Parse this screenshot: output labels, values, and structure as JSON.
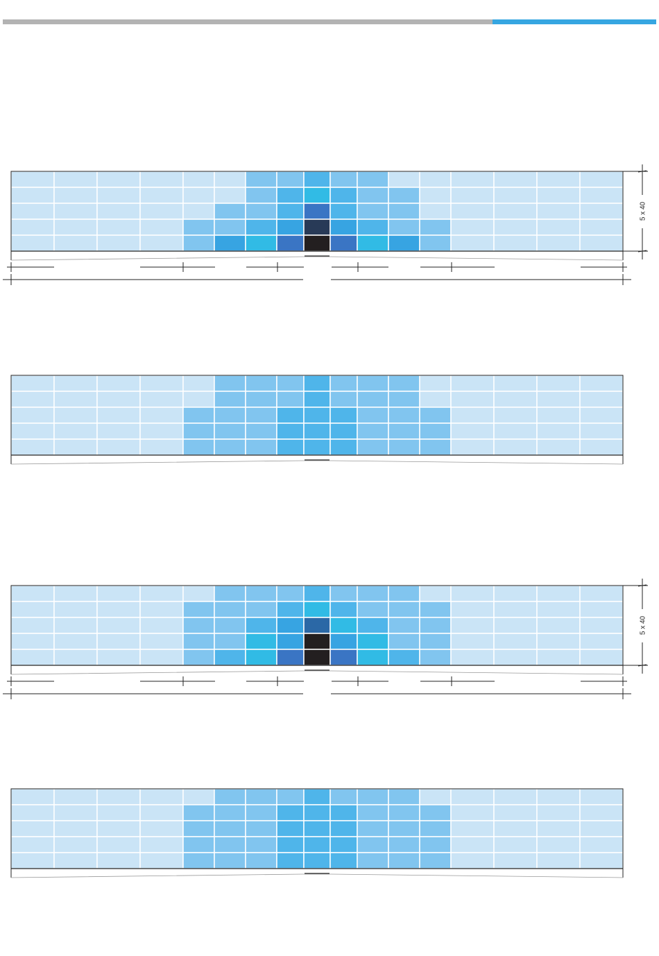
{
  "header_bar": {
    "accent_color": "#36a6e1",
    "neutral_color": "#b3b3b3"
  },
  "palette": {
    "0": "#cae4f6",
    "1": "#81c5ef",
    "2": "#4fb5ea",
    "3": "#37a4e2",
    "4": "#31bbe5",
    "5": "#3a75c4",
    "6": "#2b68a6",
    "7": "#283a57",
    "8": "#231f20"
  },
  "column_widths": [
    62,
    62,
    62,
    62,
    45,
    45,
    45,
    39,
    38,
    39,
    45,
    45,
    45,
    62,
    62,
    62,
    62
  ],
  "panels": [
    {
      "name": "panel-1",
      "dimension_label": "5 x 40",
      "has_dimensions": true,
      "grid": [
        [
          0,
          0,
          0,
          0,
          0,
          0,
          1,
          1,
          2,
          1,
          1,
          0,
          0,
          0,
          0,
          0,
          0
        ],
        [
          0,
          0,
          0,
          0,
          0,
          0,
          1,
          2,
          4,
          2,
          1,
          1,
          0,
          0,
          0,
          0,
          0
        ],
        [
          0,
          0,
          0,
          0,
          0,
          1,
          1,
          2,
          5,
          2,
          1,
          1,
          0,
          0,
          0,
          0,
          0
        ],
        [
          0,
          0,
          0,
          0,
          1,
          1,
          2,
          3,
          7,
          3,
          2,
          1,
          1,
          0,
          0,
          0,
          0
        ],
        [
          0,
          0,
          0,
          0,
          1,
          3,
          4,
          5,
          8,
          5,
          4,
          3,
          1,
          0,
          0,
          0,
          0
        ]
      ]
    },
    {
      "name": "panel-2",
      "dimension_label": "",
      "has_dimensions": false,
      "grid": [
        [
          0,
          0,
          0,
          0,
          0,
          1,
          1,
          1,
          2,
          1,
          1,
          1,
          0,
          0,
          0,
          0,
          0
        ],
        [
          0,
          0,
          0,
          0,
          0,
          1,
          1,
          1,
          2,
          1,
          1,
          1,
          0,
          0,
          0,
          0,
          0
        ],
        [
          0,
          0,
          0,
          0,
          1,
          1,
          1,
          2,
          2,
          2,
          1,
          1,
          1,
          0,
          0,
          0,
          0
        ],
        [
          0,
          0,
          0,
          0,
          1,
          1,
          1,
          2,
          2,
          2,
          1,
          1,
          1,
          0,
          0,
          0,
          0
        ],
        [
          0,
          0,
          0,
          0,
          1,
          1,
          1,
          2,
          2,
          2,
          1,
          1,
          1,
          0,
          0,
          0,
          0
        ]
      ]
    },
    {
      "name": "panel-3",
      "dimension_label": "5 x 40",
      "has_dimensions": true,
      "grid": [
        [
          0,
          0,
          0,
          0,
          0,
          1,
          1,
          1,
          2,
          1,
          1,
          1,
          0,
          0,
          0,
          0,
          0
        ],
        [
          0,
          0,
          0,
          0,
          1,
          1,
          1,
          2,
          4,
          2,
          1,
          1,
          1,
          0,
          0,
          0,
          0
        ],
        [
          0,
          0,
          0,
          0,
          1,
          1,
          2,
          3,
          6,
          4,
          2,
          1,
          1,
          0,
          0,
          0,
          0
        ],
        [
          0,
          0,
          0,
          0,
          1,
          1,
          4,
          3,
          8,
          3,
          4,
          1,
          1,
          0,
          0,
          0,
          0
        ],
        [
          0,
          0,
          0,
          0,
          1,
          2,
          4,
          5,
          8,
          5,
          4,
          2,
          1,
          0,
          0,
          0,
          0
        ]
      ]
    },
    {
      "name": "panel-4",
      "dimension_label": "",
      "has_dimensions": false,
      "grid": [
        [
          0,
          0,
          0,
          0,
          0,
          1,
          1,
          1,
          2,
          1,
          1,
          1,
          0,
          0,
          0,
          0,
          0
        ],
        [
          0,
          0,
          0,
          0,
          1,
          1,
          1,
          2,
          2,
          2,
          1,
          1,
          1,
          0,
          0,
          0,
          0
        ],
        [
          0,
          0,
          0,
          0,
          1,
          1,
          1,
          2,
          2,
          2,
          1,
          1,
          1,
          0,
          0,
          0,
          0
        ],
        [
          0,
          0,
          0,
          0,
          1,
          1,
          1,
          2,
          2,
          2,
          1,
          1,
          1,
          0,
          0,
          0,
          0
        ],
        [
          0,
          0,
          0,
          0,
          1,
          1,
          1,
          2,
          2,
          2,
          1,
          1,
          1,
          0,
          0,
          0,
          0
        ]
      ]
    }
  ]
}
